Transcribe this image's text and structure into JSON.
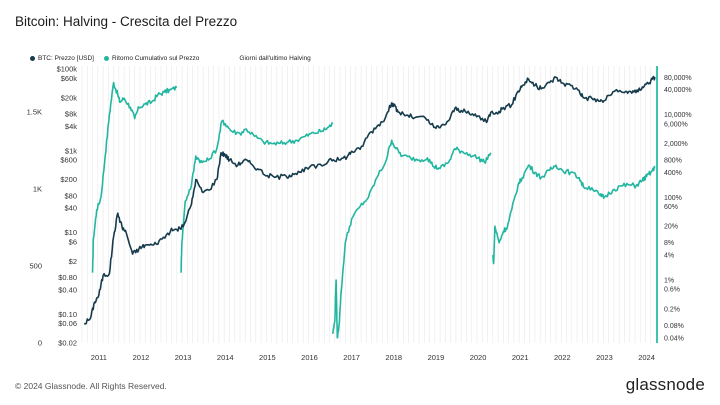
{
  "title": "Bitcoin: Halving - Crescita del Prezzo",
  "legend": {
    "price": "BTC: Prezzo [USD]",
    "return": "Ritorno Cumulativo sul Prezzo",
    "days": "Giorni dall'ultimo Halving"
  },
  "colors": {
    "price": "#163b4c",
    "return": "#22b6a0",
    "grid": "#e8e8e8",
    "edge": "#3dc4ad"
  },
  "footer": "© 2024 Glassnode. All Rights Reserved.",
  "brand": "glassnode",
  "chart_data": {
    "type": "line",
    "x_range": [
      2010.6,
      2024.2
    ],
    "x_ticks": [
      "2011",
      "2012",
      "2013",
      "2014",
      "2015",
      "2016",
      "2017",
      "2018",
      "2019",
      "2020",
      "2021",
      "2022",
      "2023",
      "2024"
    ],
    "y_price_ticks": [
      "$100k",
      "$60k",
      "$20k",
      "$8k",
      "$4k",
      "$1k",
      "$600",
      "$200",
      "$80",
      "$40",
      "$10",
      "$6",
      "$2",
      "$0.80",
      "$0.40",
      "$0.10",
      "$0.06",
      "$0.02"
    ],
    "y_price_values": [
      100000,
      60000,
      20000,
      8000,
      4000,
      1000,
      600,
      200,
      80,
      40,
      10,
      6,
      2,
      0.8,
      0.4,
      0.1,
      0.06,
      0.02
    ],
    "y_price_range": [
      0.02,
      120000
    ],
    "y_days_ticks": [
      "1.5K",
      "1K",
      "500",
      "0"
    ],
    "y_days_values": [
      1500,
      1000,
      500,
      0
    ],
    "y_return_ticks": [
      "80,000%",
      "40,000%",
      "10,000%",
      "6,000%",
      "2,000%",
      "800%",
      "400%",
      "100%",
      "60%",
      "20%",
      "8%",
      "4%",
      "1%",
      "0.6%",
      "0.2%",
      "0.08%",
      "0.04%"
    ],
    "y_return_values": [
      80000,
      40000,
      10000,
      6000,
      2000,
      800,
      400,
      100,
      60,
      20,
      8,
      4,
      1,
      0.6,
      0.2,
      0.08,
      0.04
    ],
    "y_return_range": [
      0.03,
      150000
    ],
    "series": [
      {
        "name": "BTC: Prezzo [USD]",
        "points": [
          [
            2010.65,
            0.06
          ],
          [
            2010.8,
            0.08
          ],
          [
            2010.9,
            0.2
          ],
          [
            2011.0,
            0.3
          ],
          [
            2011.1,
            0.9
          ],
          [
            2011.25,
            1.0
          ],
          [
            2011.35,
            8
          ],
          [
            2011.45,
            30
          ],
          [
            2011.55,
            14
          ],
          [
            2011.65,
            10
          ],
          [
            2011.8,
            3
          ],
          [
            2011.95,
            4
          ],
          [
            2012.1,
            5
          ],
          [
            2012.3,
            5
          ],
          [
            2012.5,
            7
          ],
          [
            2012.7,
            11
          ],
          [
            2012.85,
            12
          ],
          [
            2013.0,
            14
          ],
          [
            2013.2,
            50
          ],
          [
            2013.3,
            200
          ],
          [
            2013.45,
            100
          ],
          [
            2013.6,
            110
          ],
          [
            2013.8,
            200
          ],
          [
            2013.9,
            900
          ],
          [
            2014.0,
            800
          ],
          [
            2014.1,
            600
          ],
          [
            2014.3,
            450
          ],
          [
            2014.45,
            600
          ],
          [
            2014.6,
            500
          ],
          [
            2014.8,
            350
          ],
          [
            2015.0,
            250
          ],
          [
            2015.2,
            230
          ],
          [
            2015.45,
            240
          ],
          [
            2015.6,
            280
          ],
          [
            2015.8,
            300
          ],
          [
            2016.0,
            400
          ],
          [
            2016.3,
            430
          ],
          [
            2016.5,
            650
          ],
          [
            2016.7,
            600
          ],
          [
            2016.9,
            740
          ],
          [
            2017.0,
            980
          ],
          [
            2017.2,
            1100
          ],
          [
            2017.4,
            2500
          ],
          [
            2017.6,
            4000
          ],
          [
            2017.8,
            6500
          ],
          [
            2017.95,
            15000
          ],
          [
            2018.0,
            13000
          ],
          [
            2018.1,
            9000
          ],
          [
            2018.3,
            7500
          ],
          [
            2018.5,
            6500
          ],
          [
            2018.75,
            6400
          ],
          [
            2018.95,
            3800
          ],
          [
            2019.1,
            3700
          ],
          [
            2019.3,
            5500
          ],
          [
            2019.45,
            11000
          ],
          [
            2019.6,
            9800
          ],
          [
            2019.8,
            8000
          ],
          [
            2020.0,
            7200
          ],
          [
            2020.2,
            5000
          ],
          [
            2020.3,
            8800
          ],
          [
            2020.5,
            9300
          ],
          [
            2020.6,
            11500
          ],
          [
            2020.8,
            13500
          ],
          [
            2020.95,
            29000
          ],
          [
            2021.05,
            40000
          ],
          [
            2021.2,
            57000
          ],
          [
            2021.35,
            40000
          ],
          [
            2021.5,
            33000
          ],
          [
            2021.7,
            47000
          ],
          [
            2021.85,
            63000
          ],
          [
            2022.0,
            46000
          ],
          [
            2022.2,
            40000
          ],
          [
            2022.4,
            30000
          ],
          [
            2022.5,
            20000
          ],
          [
            2022.7,
            19500
          ],
          [
            2022.9,
            16500
          ],
          [
            2023.0,
            17000
          ],
          [
            2023.2,
            28000
          ],
          [
            2023.45,
            27000
          ],
          [
            2023.6,
            29000
          ],
          [
            2023.75,
            27000
          ],
          [
            2023.9,
            37000
          ],
          [
            2024.0,
            44000
          ],
          [
            2024.1,
            52000
          ],
          [
            2024.2,
            64000
          ]
        ]
      },
      {
        "name": "Ritorno Cumulativo sul Prezzo",
        "segments": [
          [
            [
              2010.85,
              1.5
            ],
            [
              2010.87,
              10
            ],
            [
              2010.95,
              50
            ],
            [
              2011.05,
              100
            ],
            [
              2011.15,
              1000
            ],
            [
              2011.25,
              10000
            ],
            [
              2011.35,
              60000
            ],
            [
              2011.45,
              30000
            ],
            [
              2011.5,
              20000
            ],
            [
              2011.6,
              25000
            ],
            [
              2011.75,
              15000
            ],
            [
              2011.85,
              8000
            ],
            [
              2011.95,
              15000
            ],
            [
              2012.1,
              18000
            ],
            [
              2012.25,
              20000
            ],
            [
              2012.4,
              30000
            ],
            [
              2012.55,
              35000
            ],
            [
              2012.7,
              40000
            ],
            [
              2012.85,
              45000
            ]
          ],
          [
            [
              2012.95,
              1.5
            ],
            [
              2012.97,
              8
            ],
            [
              2013.05,
              80
            ],
            [
              2013.2,
              200
            ],
            [
              2013.3,
              1000
            ],
            [
              2013.45,
              700
            ],
            [
              2013.6,
              800
            ],
            [
              2013.8,
              1500
            ],
            [
              2013.92,
              7000
            ],
            [
              2014.0,
              6000
            ],
            [
              2014.15,
              4000
            ],
            [
              2014.35,
              3500
            ],
            [
              2014.5,
              4500
            ],
            [
              2014.7,
              3000
            ],
            [
              2014.9,
              2200
            ],
            [
              2015.1,
              2000
            ],
            [
              2015.3,
              2000
            ],
            [
              2015.5,
              2200
            ],
            [
              2015.7,
              2400
            ],
            [
              2015.9,
              3000
            ],
            [
              2016.1,
              3600
            ],
            [
              2016.3,
              4000
            ],
            [
              2016.45,
              5000
            ],
            [
              2016.55,
              6000
            ]
          ],
          [
            [
              2016.55,
              0.05
            ],
            [
              2016.6,
              0.1
            ],
            [
              2016.63,
              1
            ],
            [
              2016.66,
              0.04
            ],
            [
              2016.7,
              0.08
            ],
            [
              2016.75,
              0.5
            ],
            [
              2016.85,
              8
            ],
            [
              2017.0,
              30
            ],
            [
              2017.2,
              60
            ],
            [
              2017.4,
              100
            ],
            [
              2017.6,
              300
            ],
            [
              2017.8,
              700
            ],
            [
              2017.95,
              2400
            ],
            [
              2018.05,
              1500
            ],
            [
              2018.2,
              1000
            ],
            [
              2018.4,
              900
            ],
            [
              2018.6,
              800
            ],
            [
              2018.8,
              900
            ],
            [
              2018.95,
              550
            ],
            [
              2019.1,
              500
            ],
            [
              2019.3,
              700
            ],
            [
              2019.45,
              1500
            ],
            [
              2019.6,
              1300
            ],
            [
              2019.8,
              1100
            ],
            [
              2020.0,
              900
            ],
            [
              2020.15,
              700
            ],
            [
              2020.3,
              1200
            ]
          ],
          [
            [
              2020.35,
              4
            ],
            [
              2020.37,
              2.5
            ],
            [
              2020.4,
              20
            ],
            [
              2020.5,
              8
            ],
            [
              2020.6,
              15
            ],
            [
              2020.7,
              20
            ],
            [
              2020.8,
              50
            ],
            [
              2020.95,
              200
            ],
            [
              2021.05,
              300
            ],
            [
              2021.2,
              600
            ],
            [
              2021.35,
              400
            ],
            [
              2021.5,
              300
            ],
            [
              2021.7,
              450
            ],
            [
              2021.85,
              600
            ],
            [
              2022.0,
              450
            ],
            [
              2022.2,
              400
            ],
            [
              2022.4,
              300
            ],
            [
              2022.5,
              180
            ],
            [
              2022.7,
              170
            ],
            [
              2022.9,
              110
            ],
            [
              2023.0,
              100
            ],
            [
              2023.2,
              150
            ],
            [
              2023.4,
              190
            ],
            [
              2023.6,
              200
            ],
            [
              2023.75,
              190
            ],
            [
              2023.9,
              260
            ],
            [
              2024.0,
              320
            ],
            [
              2024.1,
              400
            ],
            [
              2024.2,
              520
            ]
          ]
        ]
      }
    ]
  }
}
